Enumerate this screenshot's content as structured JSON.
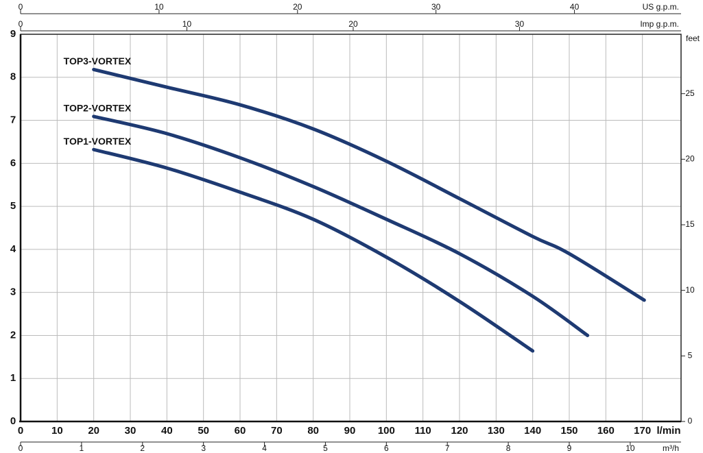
{
  "chart_data": {
    "type": "line",
    "xlabel": "l/min",
    "xlim": [
      0,
      180
    ],
    "xticks": [
      0,
      10,
      20,
      30,
      40,
      50,
      60,
      70,
      80,
      90,
      100,
      110,
      120,
      130,
      140,
      150,
      160,
      170
    ],
    "ylim": [
      0,
      9
    ],
    "yticks": [
      0,
      1,
      2,
      3,
      4,
      5,
      6,
      7,
      8,
      9
    ],
    "y2label": "feet",
    "y2lim": [
      0,
      29.53
    ],
    "y2ticks": [
      0,
      5,
      10,
      15,
      20,
      25
    ],
    "x2label": "US g.p.m.",
    "x2lim": [
      0,
      47.55
    ],
    "x2ticks": [
      0,
      10,
      20,
      30,
      40
    ],
    "x3label": "Imp g.p.m.",
    "x3lim": [
      0,
      39.59
    ],
    "x3ticks": [
      0,
      10,
      20,
      30
    ],
    "x4label": "m³/h",
    "x4lim": [
      0,
      10.8
    ],
    "x4ticks": [
      0,
      1,
      2,
      3,
      4,
      5,
      6,
      7,
      8,
      9,
      10
    ],
    "grid": true,
    "series": [
      {
        "name": "TOP3-VORTEX",
        "color": "#1e3a72",
        "x": [
          20,
          40,
          60,
          80,
          100,
          120,
          140,
          150,
          170.5
        ],
        "values": [
          8.18,
          7.77,
          7.36,
          6.8,
          6.05,
          5.18,
          4.3,
          3.9,
          2.82
        ]
      },
      {
        "name": "TOP2-VORTEX",
        "color": "#1e3a72",
        "x": [
          20,
          40,
          60,
          80,
          100,
          120,
          140,
          155
        ],
        "values": [
          7.09,
          6.69,
          6.13,
          5.46,
          4.7,
          3.9,
          2.91,
          2.0
        ]
      },
      {
        "name": "TOP1-VORTEX",
        "color": "#1e3a72",
        "x": [
          20,
          40,
          60,
          80,
          100,
          120,
          140
        ],
        "values": [
          6.32,
          5.89,
          5.33,
          4.7,
          3.82,
          2.79,
          1.64
        ]
      }
    ]
  }
}
